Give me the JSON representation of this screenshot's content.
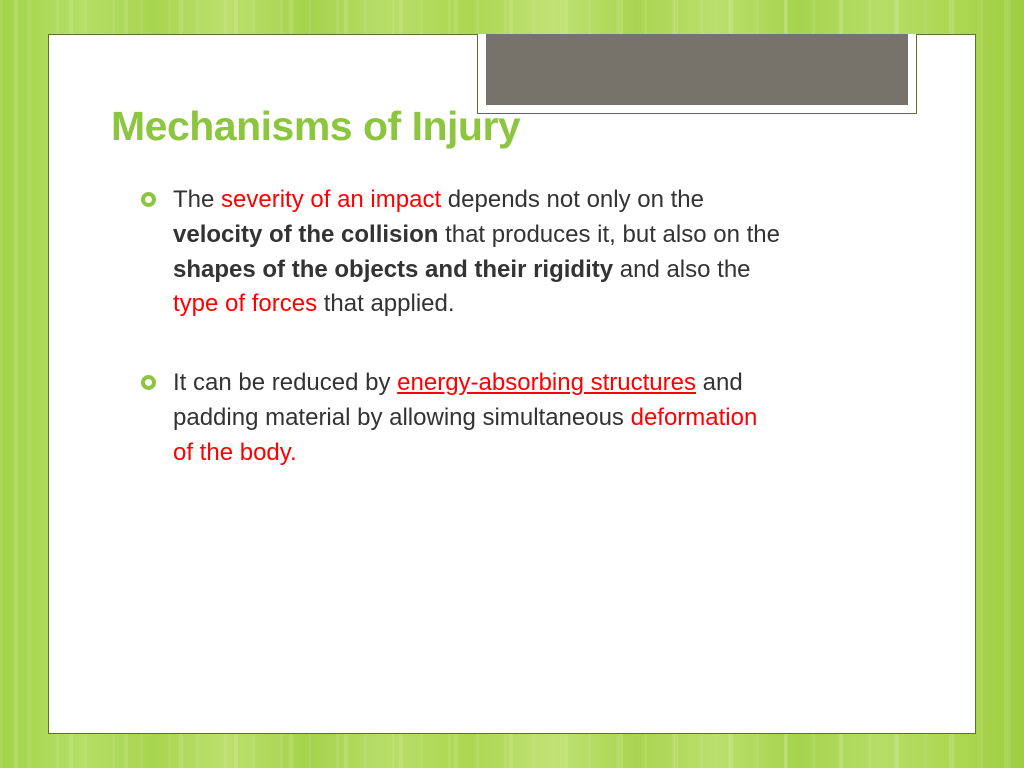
{
  "colors": {
    "accent_green": "#8cc63f",
    "title_green": "#8cc63f",
    "highlight_red": "#ff0000",
    "body_text": "#333333",
    "decor_box": "#77726a",
    "frame_border": "#5a7327"
  },
  "title": "Mechanisms of Injury",
  "bullets": [
    {
      "segments": [
        {
          "text": "The ",
          "style": "plain"
        },
        {
          "text": "severity of an impact ",
          "style": "red"
        },
        {
          "text": "depends not only on the ",
          "style": "plain"
        },
        {
          "text": "velocity of the collision ",
          "style": "bold"
        },
        {
          "text": "that produces it, but also on the ",
          "style": "plain"
        },
        {
          "text": "shapes of the objects and their rigidity ",
          "style": "bold"
        },
        {
          "text": "and also the ",
          "style": "plain"
        },
        {
          "text": "type of forces ",
          "style": "red"
        },
        {
          "text": "that applied.",
          "style": "plain"
        }
      ]
    },
    {
      "segments": [
        {
          "text": "It can be reduced by ",
          "style": "plain"
        },
        {
          "text": "energy-absorbing structures",
          "style": "red-underline"
        },
        {
          "text": " and padding material by allowing simultaneous ",
          "style": "plain"
        },
        {
          "text": "deformation of the body.",
          "style": "red"
        }
      ]
    }
  ]
}
